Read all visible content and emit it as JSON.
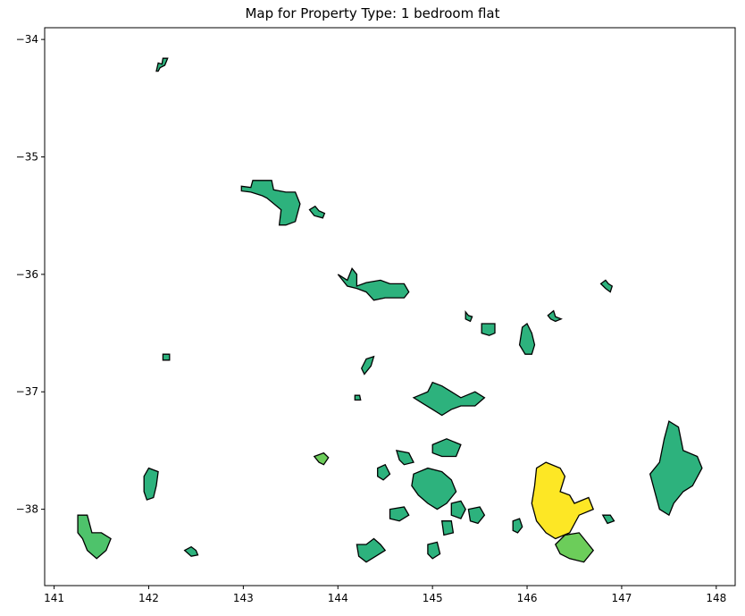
{
  "title": "Map for Property Type: 1 bedroom flat",
  "chart_data": {
    "type": "choropleth",
    "title": "Map for Property Type: 1 bedroom flat",
    "xlabel": "",
    "ylabel": "",
    "xlim": [
      140.9,
      148.2
    ],
    "ylim": [
      -38.65,
      -33.9
    ],
    "x_ticks": [
      141,
      142,
      143,
      144,
      145,
      146,
      147,
      148
    ],
    "y_ticks": [
      -34,
      -35,
      -36,
      -37,
      -38
    ],
    "x_tick_labels": [
      "141",
      "142",
      "143",
      "144",
      "145",
      "146",
      "147",
      "148"
    ],
    "y_tick_labels": [
      "−34",
      "−35",
      "−36",
      "−37",
      "−38"
    ],
    "colors": {
      "low": "#2db27d",
      "mid": "#4ec36b",
      "high": "#fde725",
      "light": "#6ccd5a",
      "edge": "#000000"
    },
    "regions": [
      {
        "id": "mildura",
        "color": "#2db27d",
        "lonlat": [
          [
            142.08,
            -34.27
          ],
          [
            142.1,
            -34.2
          ],
          [
            142.14,
            -34.21
          ],
          [
            142.15,
            -34.16
          ],
          [
            142.2,
            -34.16
          ],
          [
            142.17,
            -34.22
          ],
          [
            142.12,
            -34.24
          ],
          [
            142.1,
            -34.27
          ]
        ]
      },
      {
        "id": "swan-hill",
        "color": "#2db27d",
        "lonlat": [
          [
            142.98,
            -35.25
          ],
          [
            143.08,
            -35.26
          ],
          [
            143.1,
            -35.2
          ],
          [
            143.3,
            -35.2
          ],
          [
            143.32,
            -35.28
          ],
          [
            143.45,
            -35.3
          ],
          [
            143.55,
            -35.3
          ],
          [
            143.6,
            -35.4
          ],
          [
            143.55,
            -35.55
          ],
          [
            143.45,
            -35.58
          ],
          [
            143.38,
            -35.58
          ],
          [
            143.4,
            -35.45
          ],
          [
            143.25,
            -35.35
          ],
          [
            143.2,
            -35.33
          ],
          [
            143.08,
            -35.3
          ],
          [
            142.98,
            -35.29
          ]
        ]
      },
      {
        "id": "kerang",
        "color": "#2db27d",
        "lonlat": [
          [
            143.7,
            -35.45
          ],
          [
            143.76,
            -35.42
          ],
          [
            143.8,
            -35.46
          ],
          [
            143.86,
            -35.48
          ],
          [
            143.84,
            -35.52
          ],
          [
            143.75,
            -35.5
          ]
        ]
      },
      {
        "id": "echuca",
        "color": "#2db27d",
        "lonlat": [
          [
            144.0,
            -36.0
          ],
          [
            144.1,
            -36.05
          ],
          [
            144.15,
            -35.95
          ],
          [
            144.2,
            -36.0
          ],
          [
            144.2,
            -36.1
          ],
          [
            144.3,
            -36.07
          ],
          [
            144.45,
            -36.05
          ],
          [
            144.55,
            -36.08
          ],
          [
            144.7,
            -36.08
          ],
          [
            144.75,
            -36.15
          ],
          [
            144.7,
            -36.2
          ],
          [
            144.5,
            -36.2
          ],
          [
            144.38,
            -36.22
          ],
          [
            144.3,
            -36.15
          ],
          [
            144.2,
            -36.12
          ],
          [
            144.1,
            -36.1
          ]
        ]
      },
      {
        "id": "wangaratta",
        "color": "#2db27d",
        "lonlat": [
          [
            146.22,
            -36.35
          ],
          [
            146.28,
            -36.31
          ],
          [
            146.3,
            -36.36
          ],
          [
            146.36,
            -36.38
          ],
          [
            146.3,
            -36.4
          ],
          [
            146.25,
            -36.38
          ]
        ]
      },
      {
        "id": "wodonga",
        "color": "#2db27d",
        "lonlat": [
          [
            146.78,
            -36.08
          ],
          [
            146.83,
            -36.05
          ],
          [
            146.86,
            -36.08
          ],
          [
            146.9,
            -36.1
          ],
          [
            146.88,
            -36.15
          ],
          [
            146.83,
            -36.12
          ]
        ]
      },
      {
        "id": "shepparton-a",
        "color": "#2db27d",
        "lonlat": [
          [
            145.35,
            -36.32
          ],
          [
            145.38,
            -36.35
          ],
          [
            145.42,
            -36.36
          ],
          [
            145.4,
            -36.4
          ],
          [
            145.35,
            -36.38
          ]
        ]
      },
      {
        "id": "shepparton-b",
        "color": "#2db27d",
        "lonlat": [
          [
            145.52,
            -36.42
          ],
          [
            145.66,
            -36.42
          ],
          [
            145.66,
            -36.5
          ],
          [
            145.6,
            -36.52
          ],
          [
            145.52,
            -36.5
          ]
        ]
      },
      {
        "id": "benalla",
        "color": "#2db27d",
        "lonlat": [
          [
            145.95,
            -36.45
          ],
          [
            146.0,
            -36.42
          ],
          [
            146.05,
            -36.5
          ],
          [
            146.08,
            -36.6
          ],
          [
            146.05,
            -36.68
          ],
          [
            145.98,
            -36.68
          ],
          [
            145.92,
            -36.6
          ]
        ]
      },
      {
        "id": "horsham-dot",
        "color": "#2db27d",
        "lonlat": [
          [
            142.15,
            -36.68
          ],
          [
            142.22,
            -36.68
          ],
          [
            142.22,
            -36.73
          ],
          [
            142.15,
            -36.73
          ]
        ]
      },
      {
        "id": "bendigo",
        "color": "#2db27d",
        "lonlat": [
          [
            144.25,
            -36.8
          ],
          [
            144.3,
            -36.72
          ],
          [
            144.38,
            -36.7
          ],
          [
            144.35,
            -36.78
          ],
          [
            144.28,
            -36.85
          ]
        ]
      },
      {
        "id": "castlemaine",
        "color": "#2db27d",
        "lonlat": [
          [
            144.18,
            -37.03
          ],
          [
            144.23,
            -37.03
          ],
          [
            144.24,
            -37.07
          ],
          [
            144.18,
            -37.07
          ]
        ]
      },
      {
        "id": "seymour",
        "color": "#2db27d",
        "lonlat": [
          [
            144.8,
            -37.05
          ],
          [
            144.95,
            -37.0
          ],
          [
            145.0,
            -36.92
          ],
          [
            145.1,
            -36.95
          ],
          [
            145.2,
            -37.0
          ],
          [
            145.3,
            -37.05
          ],
          [
            145.45,
            -37.0
          ],
          [
            145.55,
            -37.05
          ],
          [
            145.45,
            -37.12
          ],
          [
            145.3,
            -37.12
          ],
          [
            145.2,
            -37.15
          ],
          [
            145.1,
            -37.2
          ],
          [
            145.0,
            -37.15
          ],
          [
            144.9,
            -37.1
          ]
        ]
      },
      {
        "id": "ballarat-small",
        "color": "#6ccd5a",
        "lonlat": [
          [
            143.75,
            -37.55
          ],
          [
            143.85,
            -37.52
          ],
          [
            143.9,
            -37.56
          ],
          [
            143.85,
            -37.62
          ],
          [
            143.8,
            -37.6
          ]
        ]
      },
      {
        "id": "warrnambool-area",
        "color": "#4ec36b",
        "lonlat": [
          [
            141.25,
            -38.05
          ],
          [
            141.35,
            -38.05
          ],
          [
            141.4,
            -38.2
          ],
          [
            141.5,
            -38.2
          ],
          [
            141.6,
            -38.25
          ],
          [
            141.55,
            -38.35
          ],
          [
            141.45,
            -38.42
          ],
          [
            141.35,
            -38.35
          ],
          [
            141.3,
            -38.25
          ],
          [
            141.25,
            -38.2
          ]
        ]
      },
      {
        "id": "hamilton",
        "color": "#2db27d",
        "lonlat": [
          [
            141.95,
            -37.72
          ],
          [
            142.0,
            -37.65
          ],
          [
            142.1,
            -37.68
          ],
          [
            142.08,
            -37.8
          ],
          [
            142.05,
            -37.9
          ],
          [
            141.98,
            -37.92
          ],
          [
            141.95,
            -37.85
          ]
        ]
      },
      {
        "id": "portland-edge",
        "color": "#2db27d",
        "lonlat": [
          [
            142.38,
            -38.35
          ],
          [
            142.45,
            -38.32
          ],
          [
            142.5,
            -38.35
          ],
          [
            142.52,
            -38.39
          ],
          [
            142.45,
            -38.4
          ]
        ]
      },
      {
        "id": "geelong",
        "color": "#2db27d",
        "lonlat": [
          [
            144.2,
            -38.3
          ],
          [
            144.3,
            -38.3
          ],
          [
            144.38,
            -38.25
          ],
          [
            144.45,
            -38.3
          ],
          [
            144.5,
            -38.35
          ],
          [
            144.4,
            -38.4
          ],
          [
            144.3,
            -38.45
          ],
          [
            144.22,
            -38.4
          ]
        ]
      },
      {
        "id": "werribee",
        "color": "#2db27d",
        "lonlat": [
          [
            144.55,
            -38.0
          ],
          [
            144.7,
            -37.98
          ],
          [
            144.75,
            -38.05
          ],
          [
            144.65,
            -38.1
          ],
          [
            144.55,
            -38.08
          ]
        ]
      },
      {
        "id": "melton",
        "color": "#2db27d",
        "lonlat": [
          [
            144.42,
            -37.65
          ],
          [
            144.5,
            -37.62
          ],
          [
            144.55,
            -37.7
          ],
          [
            144.48,
            -37.75
          ],
          [
            144.42,
            -37.72
          ]
        ]
      },
      {
        "id": "sunbury",
        "color": "#2db27d",
        "lonlat": [
          [
            144.62,
            -37.5
          ],
          [
            144.75,
            -37.52
          ],
          [
            144.8,
            -37.6
          ],
          [
            144.7,
            -37.62
          ],
          [
            144.65,
            -37.58
          ]
        ]
      },
      {
        "id": "whittlesea",
        "color": "#2db27d",
        "lonlat": [
          [
            145.0,
            -37.45
          ],
          [
            145.15,
            -37.4
          ],
          [
            145.3,
            -37.45
          ],
          [
            145.25,
            -37.55
          ],
          [
            145.1,
            -37.55
          ],
          [
            145.0,
            -37.52
          ]
        ]
      },
      {
        "id": "melbourne-core",
        "color": "#2db27d",
        "lonlat": [
          [
            144.8,
            -37.7
          ],
          [
            144.95,
            -37.65
          ],
          [
            145.1,
            -37.68
          ],
          [
            145.2,
            -37.75
          ],
          [
            145.25,
            -37.85
          ],
          [
            145.15,
            -37.95
          ],
          [
            145.05,
            -38.0
          ],
          [
            144.95,
            -37.95
          ],
          [
            144.85,
            -37.88
          ],
          [
            144.78,
            -37.8
          ]
        ]
      },
      {
        "id": "dandenong",
        "color": "#2db27d",
        "lonlat": [
          [
            145.2,
            -37.95
          ],
          [
            145.3,
            -37.93
          ],
          [
            145.35,
            -38.0
          ],
          [
            145.3,
            -38.08
          ],
          [
            145.2,
            -38.05
          ]
        ]
      },
      {
        "id": "frankston",
        "color": "#2db27d",
        "lonlat": [
          [
            145.1,
            -38.1
          ],
          [
            145.2,
            -38.1
          ],
          [
            145.22,
            -38.2
          ],
          [
            145.12,
            -38.22
          ]
        ]
      },
      {
        "id": "mornington",
        "color": "#2db27d",
        "lonlat": [
          [
            144.95,
            -38.3
          ],
          [
            145.05,
            -38.28
          ],
          [
            145.08,
            -38.38
          ],
          [
            145.0,
            -38.42
          ],
          [
            144.95,
            -38.38
          ]
        ]
      },
      {
        "id": "pakenham",
        "color": "#2db27d",
        "lonlat": [
          [
            145.38,
            -38.0
          ],
          [
            145.5,
            -37.98
          ],
          [
            145.55,
            -38.05
          ],
          [
            145.48,
            -38.12
          ],
          [
            145.4,
            -38.1
          ]
        ]
      },
      {
        "id": "warragul",
        "color": "#2db27d",
        "lonlat": [
          [
            145.85,
            -38.1
          ],
          [
            145.92,
            -38.08
          ],
          [
            145.95,
            -38.15
          ],
          [
            145.9,
            -38.2
          ],
          [
            145.85,
            -38.18
          ]
        ]
      },
      {
        "id": "sale-yellow",
        "color": "#fde725",
        "lonlat": [
          [
            146.1,
            -37.65
          ],
          [
            146.2,
            -37.6
          ],
          [
            146.35,
            -37.65
          ],
          [
            146.4,
            -37.72
          ],
          [
            146.35,
            -37.85
          ],
          [
            146.45,
            -37.88
          ],
          [
            146.5,
            -37.95
          ],
          [
            146.65,
            -37.9
          ],
          [
            146.7,
            -38.0
          ],
          [
            146.55,
            -38.05
          ],
          [
            146.45,
            -38.2
          ],
          [
            146.3,
            -38.25
          ],
          [
            146.2,
            -38.2
          ],
          [
            146.1,
            -38.1
          ],
          [
            146.05,
            -37.95
          ],
          [
            146.08,
            -37.8
          ]
        ]
      },
      {
        "id": "traralgon-green",
        "color": "#6ccd5a",
        "lonlat": [
          [
            146.3,
            -38.3
          ],
          [
            146.4,
            -38.22
          ],
          [
            146.55,
            -38.2
          ],
          [
            146.65,
            -38.3
          ],
          [
            146.7,
            -38.35
          ],
          [
            146.6,
            -38.45
          ],
          [
            146.45,
            -38.42
          ],
          [
            146.35,
            -38.38
          ]
        ]
      },
      {
        "id": "bairnsdale",
        "color": "#2db27d",
        "lonlat": [
          [
            146.8,
            -38.05
          ],
          [
            146.88,
            -38.05
          ],
          [
            146.92,
            -38.1
          ],
          [
            146.85,
            -38.12
          ]
        ]
      },
      {
        "id": "east-gippsland",
        "color": "#2db27d",
        "lonlat": [
          [
            147.4,
            -37.6
          ],
          [
            147.45,
            -37.4
          ],
          [
            147.5,
            -37.25
          ],
          [
            147.6,
            -37.3
          ],
          [
            147.65,
            -37.5
          ],
          [
            147.8,
            -37.55
          ],
          [
            147.85,
            -37.65
          ],
          [
            147.75,
            -37.8
          ],
          [
            147.65,
            -37.85
          ],
          [
            147.55,
            -37.95
          ],
          [
            147.5,
            -38.05
          ],
          [
            147.4,
            -38.0
          ],
          [
            147.35,
            -37.85
          ],
          [
            147.3,
            -37.7
          ]
        ]
      }
    ]
  }
}
